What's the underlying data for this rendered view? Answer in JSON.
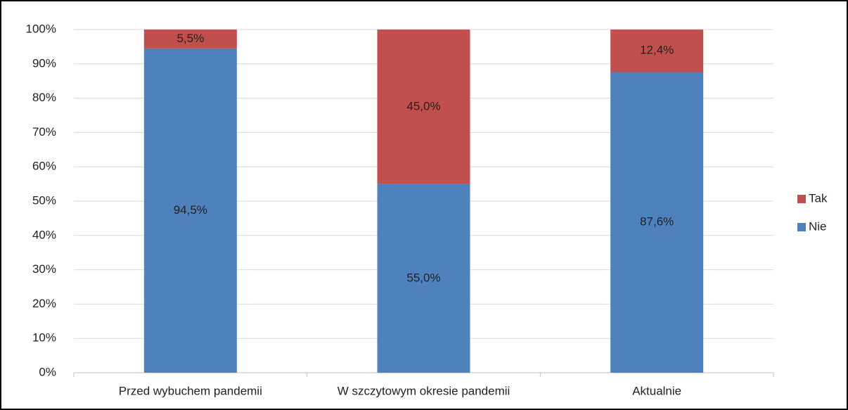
{
  "chart_data": {
    "type": "stacked_bar",
    "categories": [
      "Przed wybuchem pandemii",
      "W szczytowym okresie pandemii",
      "Aktualnie"
    ],
    "series": [
      {
        "name": "Nie",
        "color": "#4f81bd",
        "values": [
          94.5,
          55.0,
          87.6
        ],
        "value_labels": [
          "94,5%",
          "55,0%",
          "87,6%"
        ]
      },
      {
        "name": "Tak",
        "color": "#c0504d",
        "values": [
          5.5,
          45.0,
          12.4
        ],
        "value_labels": [
          "5,5%",
          "45,0%",
          "12,4%"
        ]
      }
    ],
    "ylim": [
      0,
      100
    ],
    "yticks": [
      {
        "value": 0,
        "label": "0%"
      },
      {
        "value": 10,
        "label": "10%"
      },
      {
        "value": 20,
        "label": "20%"
      },
      {
        "value": 30,
        "label": "30%"
      },
      {
        "value": 40,
        "label": "40%"
      },
      {
        "value": 50,
        "label": "50%"
      },
      {
        "value": 60,
        "label": "60%"
      },
      {
        "value": 70,
        "label": "70%"
      },
      {
        "value": 80,
        "label": "80%"
      },
      {
        "value": 90,
        "label": "90%"
      },
      {
        "value": 100,
        "label": "100%"
      }
    ],
    "grid": true,
    "legend": "right"
  }
}
